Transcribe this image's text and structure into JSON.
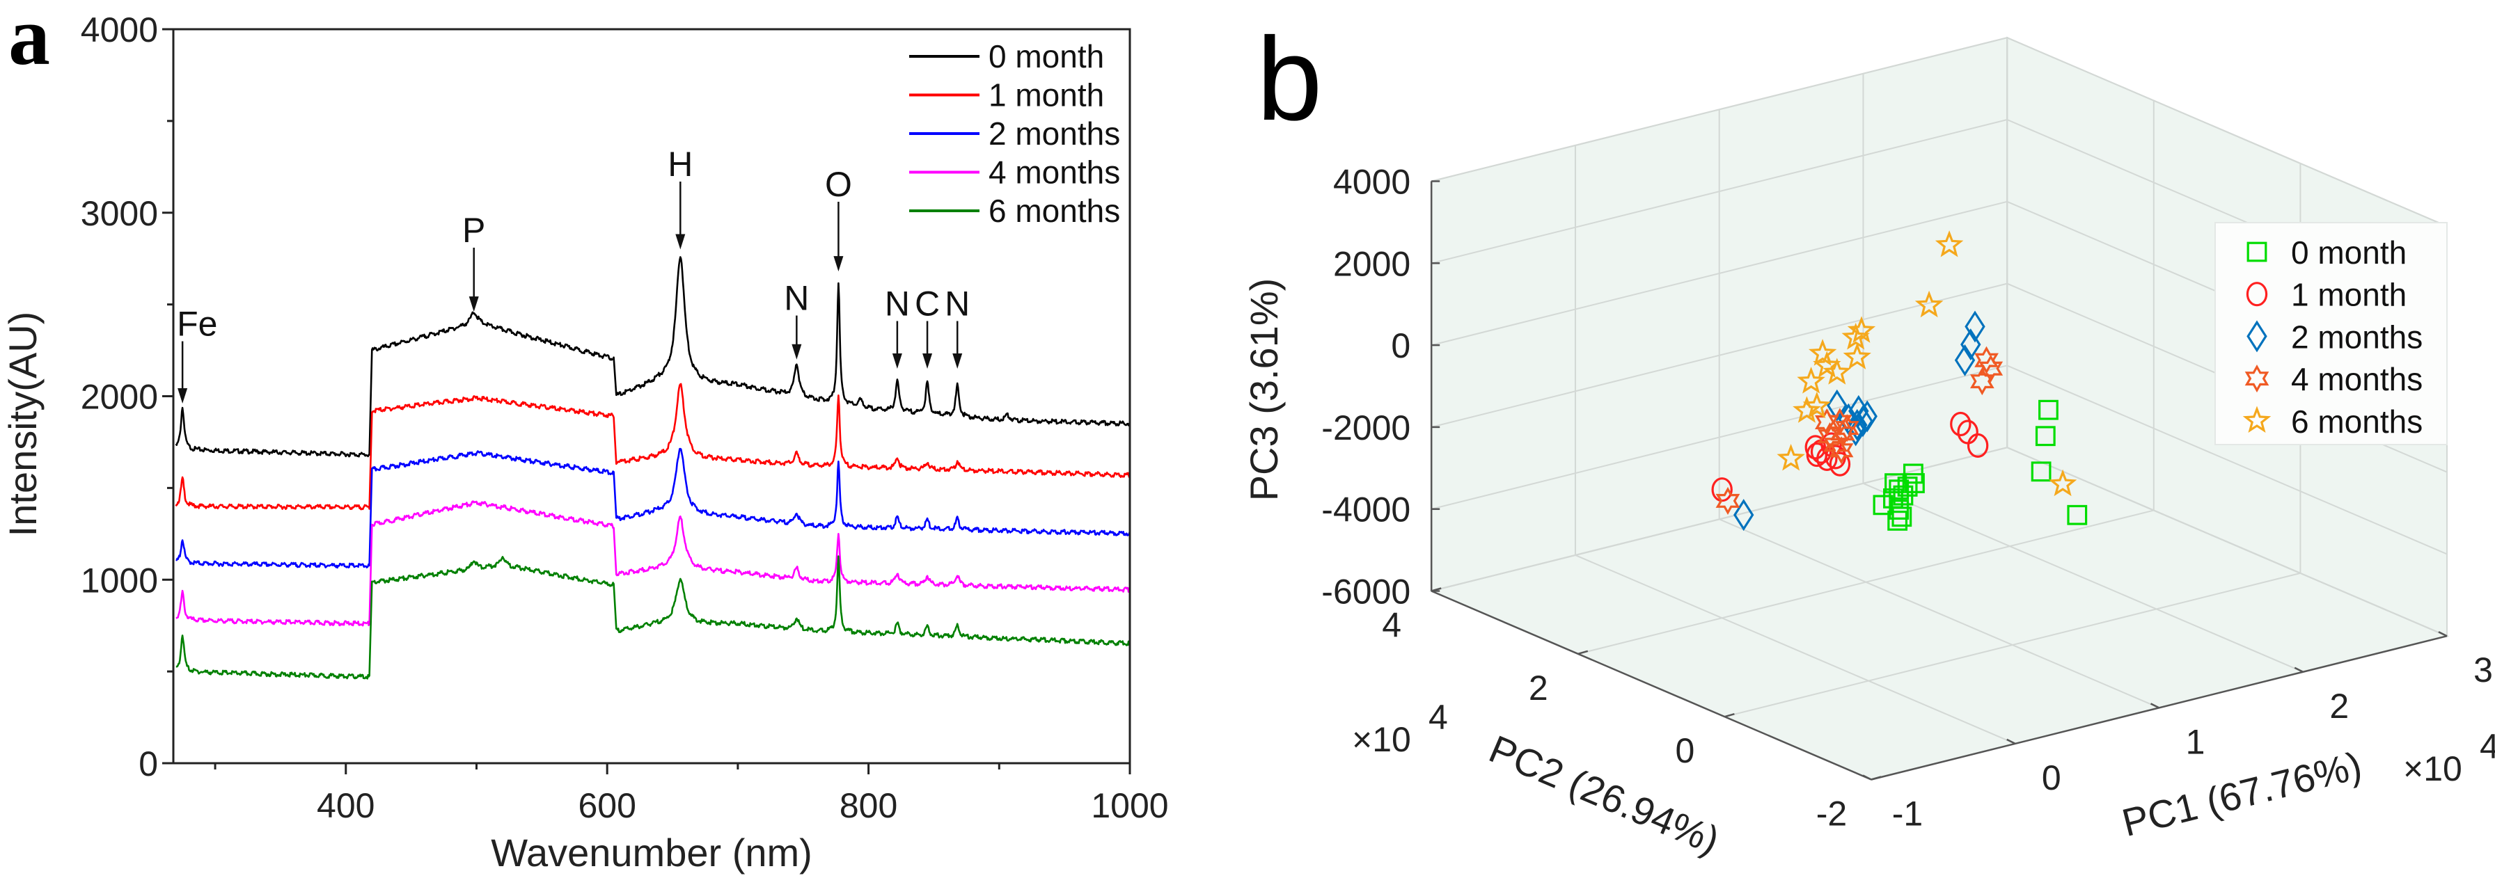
{
  "panel_labels": {
    "a": "a",
    "b": "b"
  },
  "chart_data": [
    {
      "type": "line",
      "panel": "a",
      "title": "",
      "xlabel": "Wavenumber (nm)",
      "ylabel": "Intensity(AU)",
      "xlim": [
        268,
        1000
      ],
      "ylim": [
        0,
        4000
      ],
      "xticks": [
        400,
        600,
        800,
        1000
      ],
      "xminor": [
        300,
        500,
        700,
        900
      ],
      "yticks": [
        0,
        1000,
        2000,
        3000,
        4000
      ],
      "yminor": [
        500,
        1500,
        2500,
        3500
      ],
      "legend_position": "top-right",
      "series": [
        {
          "name": "0 month",
          "color": "#000000",
          "segments": [
            [
              [
                270,
                1710
              ],
              [
                418,
                1680
              ]
            ],
            [
              [
                420,
                2250
              ],
              [
                500,
                2400
              ],
              [
                605,
                2200
              ]
            ],
            [
              [
                607,
                2000
              ],
              [
                640,
                2080
              ],
              [
                700,
                2060
              ],
              [
                760,
                1980
              ],
              [
                800,
                1930
              ],
              [
                900,
                1870
              ],
              [
                1000,
                1850
              ]
            ]
          ],
          "peaks": [
            [
              275,
              230,
              1.5
            ],
            [
              498,
              60,
              3
            ],
            [
              656,
              690,
              4
            ],
            [
              745,
              180,
              2
            ],
            [
              777,
              660,
              1.2
            ],
            [
              794,
              40,
              2
            ],
            [
              822,
              170,
              1.5
            ],
            [
              845,
              170,
              1.5
            ],
            [
              868,
              170,
              1.5
            ],
            [
              906,
              30,
              2
            ]
          ]
        },
        {
          "name": "1 month",
          "color": "#ff0000",
          "segments": [
            [
              [
                270,
                1400
              ],
              [
                418,
                1395
              ]
            ],
            [
              [
                420,
                1920
              ],
              [
                500,
                1990
              ],
              [
                605,
                1890
              ]
            ],
            [
              [
                607,
                1640
              ],
              [
                640,
                1665
              ],
              [
                700,
                1650
              ],
              [
                760,
                1620
              ],
              [
                1000,
                1570
              ]
            ]
          ],
          "peaks": [
            [
              275,
              150,
              1.5
            ],
            [
              656,
              400,
              4
            ],
            [
              745,
              60,
              2
            ],
            [
              777,
              390,
              1.2
            ],
            [
              822,
              60,
              1.5
            ],
            [
              845,
              40,
              1.5
            ],
            [
              868,
              50,
              1.5
            ]
          ]
        },
        {
          "name": "2 months",
          "color": "#0000ff",
          "segments": [
            [
              [
                270,
                1090
              ],
              [
                418,
                1075
              ]
            ],
            [
              [
                420,
                1600
              ],
              [
                500,
                1690
              ],
              [
                605,
                1580
              ]
            ],
            [
              [
                607,
                1330
              ],
              [
                640,
                1370
              ],
              [
                700,
                1340
              ],
              [
                760,
                1290
              ],
              [
                1000,
                1252
              ]
            ]
          ],
          "peaks": [
            [
              275,
              130,
              1.5
            ],
            [
              656,
              360,
              4
            ],
            [
              745,
              60,
              2
            ],
            [
              777,
              350,
              1.2
            ],
            [
              822,
              60,
              1.5
            ],
            [
              845,
              50,
              1.5
            ],
            [
              868,
              60,
              1.5
            ]
          ]
        },
        {
          "name": "4 months",
          "color": "#ff00ff",
          "segments": [
            [
              [
                270,
                780
              ],
              [
                418,
                760
              ]
            ],
            [
              [
                420,
                1300
              ],
              [
                500,
                1420
              ],
              [
                605,
                1290
              ]
            ],
            [
              [
                607,
                1030
              ],
              [
                640,
                1060
              ],
              [
                700,
                1040
              ],
              [
                760,
                990
              ],
              [
                1000,
                945
              ]
            ]
          ],
          "peaks": [
            [
              275,
              150,
              1.5
            ],
            [
              656,
              280,
              4
            ],
            [
              745,
              60,
              2
            ],
            [
              777,
              270,
              1.2
            ],
            [
              822,
              60,
              1.5
            ],
            [
              845,
              50,
              1.5
            ],
            [
              868,
              60,
              1.5
            ]
          ]
        },
        {
          "name": "6 months",
          "color": "#008000",
          "segments": [
            [
              [
                270,
                500
              ],
              [
                418,
                470
              ]
            ],
            [
              [
                420,
                985
              ],
              [
                500,
                1060
              ],
              [
                520,
                1080
              ],
              [
                605,
                970
              ]
            ],
            [
              [
                607,
                720
              ],
              [
                640,
                760
              ],
              [
                700,
                760
              ],
              [
                760,
                720
              ],
              [
                1000,
                653
              ]
            ]
          ],
          "peaks": [
            [
              275,
              200,
              1.5
            ],
            [
              498,
              50,
              2
            ],
            [
              520,
              50,
              2
            ],
            [
              656,
              245,
              4
            ],
            [
              745,
              60,
              2
            ],
            [
              777,
              400,
              1.2
            ],
            [
              822,
              60,
              1.5
            ],
            [
              845,
              50,
              1.5
            ],
            [
              868,
              60,
              1.5
            ]
          ]
        }
      ],
      "annotations": [
        {
          "label": "Fe",
          "x": 275,
          "label_y": 2330,
          "arrow_to": 1960
        },
        {
          "label": "P",
          "x": 498,
          "label_y": 2840,
          "arrow_to": 2460
        },
        {
          "label": "H",
          "x": 656,
          "label_y": 3200,
          "arrow_to": 2800
        },
        {
          "label": "N",
          "x": 745,
          "label_y": 2470,
          "arrow_to": 2200
        },
        {
          "label": "O",
          "x": 777,
          "label_y": 3090,
          "arrow_to": 2680
        },
        {
          "label": "N",
          "x": 822,
          "label_y": 2440,
          "arrow_to": 2150
        },
        {
          "label": "C",
          "x": 845,
          "label_y": 2440,
          "arrow_to": 2150
        },
        {
          "label": "N",
          "x": 868,
          "label_y": 2440,
          "arrow_to": 2150
        }
      ]
    },
    {
      "type": "scatter3d",
      "panel": "b",
      "title": "",
      "xlabel": "PC1 (67.76%)",
      "ylabel": "PC2 (26.94%)",
      "zlabel": "PC3  (3.61%)",
      "x_multiplier": "×10",
      "x_multiplier_exp": "4",
      "y_multiplier": "×10",
      "y_multiplier_exp": "4",
      "xlim": [
        -1,
        3
      ],
      "ylim": [
        -2,
        4
      ],
      "zlim": [
        -6000,
        4000
      ],
      "xticks": [
        -1,
        0,
        1,
        2,
        3
      ],
      "yticks": [
        -2,
        0,
        2,
        4
      ],
      "zticks": [
        -6000,
        -4000,
        -2000,
        0,
        2000,
        4000
      ],
      "grid": true,
      "legend_position": "right",
      "series": [
        {
          "name": "0 month",
          "color": "#00dd00",
          "marker": "square",
          "points": [
            [
              0.74,
              -1,
              730
            ],
            [
              0.72,
              -1,
              110
            ],
            [
              0.69,
              -1,
              -730
            ],
            [
              0.94,
              -1,
              -2010
            ],
            [
              0.82,
              1,
              -2430
            ],
            [
              0.83,
              1,
              -2670
            ],
            [
              0.69,
              1,
              -2550
            ],
            [
              0.72,
              1,
              -2730
            ],
            [
              0.75,
              1,
              -2900
            ],
            [
              0.61,
              1,
              -3010
            ],
            [
              0.72,
              1,
              -3220
            ],
            [
              0.74,
              1,
              -3410
            ],
            [
              0.71,
              1,
              -3480
            ],
            [
              0.78,
              1,
              -2710
            ],
            [
              0.68,
              1,
              -2910
            ]
          ]
        },
        {
          "name": "1 month",
          "color": "#ff2020",
          "marker": "circle",
          "points": [
            [
              0.51,
              3,
              -4080
            ],
            [
              0.13,
              -1,
              920
            ],
            [
              0.18,
              -1,
              680
            ],
            [
              0.25,
              -1,
              290
            ],
            [
              0.14,
              1,
              -1190
            ],
            [
              0.18,
              1,
              -1330
            ],
            [
              0.22,
              1,
              -1540
            ],
            [
              0.31,
              1,
              -1750
            ],
            [
              0.15,
              1,
              -1380
            ],
            [
              0.25,
              1,
              -1220
            ],
            [
              0.28,
              1,
              -1550
            ]
          ]
        },
        {
          "name": "2 months",
          "color": "#0072bd",
          "marker": "diamond",
          "points": [
            [
              0.66,
              3,
              -4830
            ],
            [
              0.23,
              -1,
              3210
            ],
            [
              0.2,
              -1,
              2800
            ],
            [
              0.16,
              -1,
              2450
            ],
            [
              0.29,
              1,
              -300
            ],
            [
              0.44,
              1,
              -570
            ],
            [
              0.47,
              1,
              -840
            ],
            [
              0.42,
              1,
              -1020
            ],
            [
              0.37,
              1,
              -710
            ],
            [
              0.5,
              1,
              -750
            ],
            [
              0.43,
              1,
              -900
            ]
          ]
        },
        {
          "name": "4 months",
          "color": "#f05a24",
          "marker": "hexagram",
          "points": [
            [
              0.55,
              3,
              -4390
            ],
            [
              0.31,
              -1,
              2320
            ],
            [
              0.28,
              -1,
              1830
            ],
            [
              0.34,
              -1,
              2090
            ],
            [
              0.31,
              1,
              -720
            ],
            [
              0.33,
              1,
              -1020
            ],
            [
              0.28,
              1,
              -1250
            ],
            [
              0.36,
              1,
              -910
            ],
            [
              0.24,
              1,
              -1010
            ],
            [
              0.32,
              1,
              -1420
            ],
            [
              0.22,
              1,
              -650
            ]
          ]
        },
        {
          "name": "6 months",
          "color": "#f5a81c",
          "marker": "star",
          "points": [
            [
              1.07,
              1,
              2930
            ],
            [
              0.93,
              1,
              1580
            ],
            [
              0.84,
              -1,
              -1170
            ],
            [
              -0.03,
              1,
              -1320
            ],
            [
              0.46,
              1,
              1370
            ],
            [
              0.42,
              1,
              1240
            ],
            [
              0.19,
              1,
              1050
            ],
            [
              0.29,
              1,
              500
            ],
            [
              0.11,
              1,
              440
            ],
            [
              0.15,
              1,
              -200
            ],
            [
              0.43,
              1,
              750
            ],
            [
              0.22,
              1,
              730
            ],
            [
              0.08,
              1,
              -250
            ]
          ]
        }
      ]
    }
  ]
}
